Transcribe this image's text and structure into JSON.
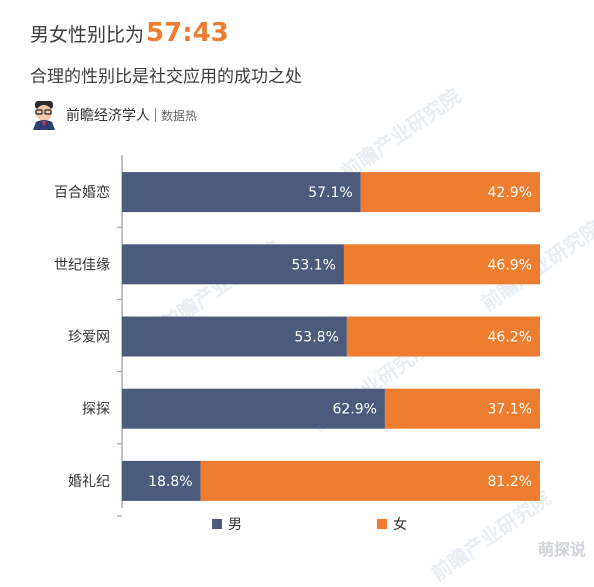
{
  "header": {
    "title_prefix": "男女性别比为",
    "title_ratio": "57:43",
    "subtitle": "合理的性别比是社交应用的成功之处",
    "brand_name": "前瞻经济学人",
    "brand_sub": "数据热"
  },
  "watermark": {
    "text": "前瞻产业研究院",
    "corner": "萌探说"
  },
  "colors": {
    "male": "#4c5b7c",
    "female": "#ef7d2f",
    "title_accent": "#ef7d2f",
    "axis": "#9a9a9a"
  },
  "chart_data": {
    "type": "bar",
    "orientation": "horizontal",
    "stacked": true,
    "categories": [
      "百合婚恋",
      "世纪佳缘",
      "珍爱网",
      "探探",
      "婚礼纪"
    ],
    "series": [
      {
        "name": "男",
        "values": [
          57.1,
          53.1,
          53.8,
          62.9,
          18.8
        ],
        "labels": [
          "57.1%",
          "53.1%",
          "53.8%",
          "62.9%",
          "18.8%"
        ]
      },
      {
        "name": "女",
        "values": [
          42.9,
          46.9,
          46.2,
          37.1,
          81.2
        ],
        "labels": [
          "42.9%",
          "46.9%",
          "46.2%",
          "37.1%",
          "81.2%"
        ]
      }
    ],
    "xlim": [
      0,
      100
    ],
    "legend_position": "bottom",
    "grid": false
  }
}
